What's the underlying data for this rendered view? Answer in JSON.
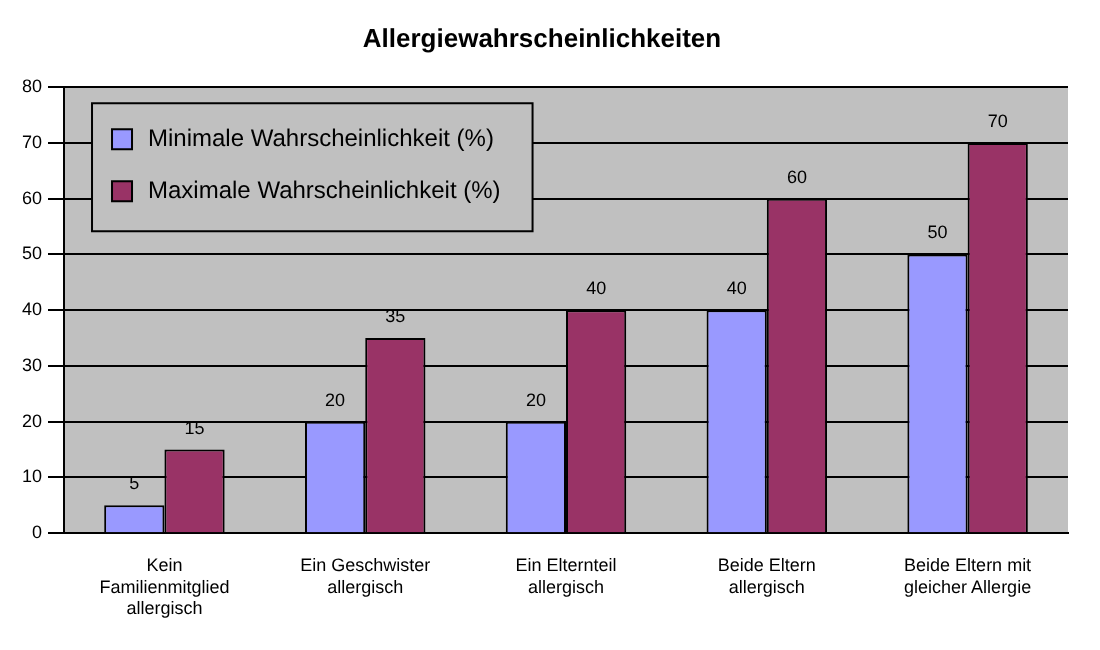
{
  "chart_data": {
    "type": "bar",
    "title": "Allergiewahrscheinlichkeiten",
    "categories": [
      "Kein Familienmitglied allergisch",
      "Ein Geschwister allergisch",
      "Ein Elternteil allergisch",
      "Beide Eltern allergisch",
      "Beide Eltern mit gleicher Allergie"
    ],
    "series": [
      {
        "name": "Minimale Wahrscheinlichkeit (%)",
        "color": "#9999ff",
        "values": [
          5,
          20,
          20,
          40,
          50
        ]
      },
      {
        "name": "Maximale Wahrscheinlichkeit (%)",
        "color": "#993366",
        "values": [
          15,
          35,
          40,
          60,
          70
        ]
      }
    ],
    "ylim": [
      0,
      80
    ],
    "yticks": [
      0,
      10,
      20,
      30,
      40,
      50,
      60,
      70,
      80
    ],
    "grid": "y",
    "legend": "top left",
    "data_labels": true
  }
}
